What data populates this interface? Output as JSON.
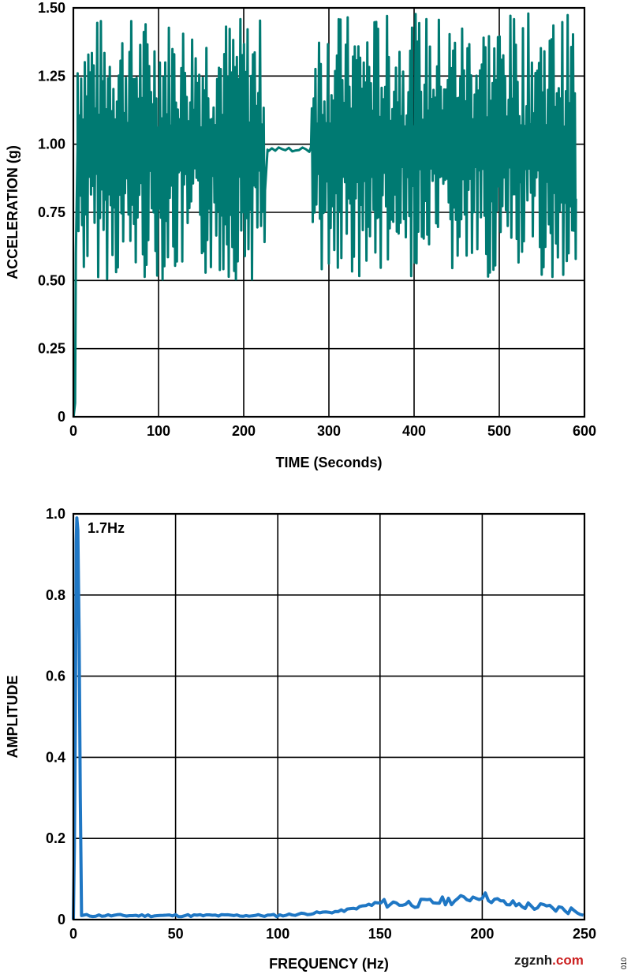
{
  "chart_data": [
    {
      "type": "line",
      "title": "",
      "xlabel": "TIME (Seconds)",
      "ylabel": "ACCELERATION (g)",
      "xlim": [
        0,
        600
      ],
      "ylim": [
        0,
        1.5
      ],
      "x_ticks": [
        "0",
        "100",
        "200",
        "300",
        "400",
        "500",
        "600"
      ],
      "y_ticks": [
        "0",
        "0.25",
        "0.50",
        "0.75",
        "1.00",
        "1.25",
        "1.50"
      ],
      "grid": true,
      "series_color": "#007a72",
      "segments": [
        {
          "x_start": 0,
          "x_end": 5,
          "behavior": "rise from 0 to ~1.0 g"
        },
        {
          "x_start": 5,
          "x_end": 225,
          "behavior": "oscillation",
          "min": 0.5,
          "max": 1.47
        },
        {
          "x_start": 225,
          "x_end": 280,
          "behavior": "near-steady",
          "min": 0.97,
          "max": 0.99
        },
        {
          "x_start": 280,
          "x_end": 590,
          "behavior": "oscillation",
          "min": 0.5,
          "max": 1.48
        }
      ]
    },
    {
      "type": "line",
      "title": "",
      "xlabel": "FREQUENCY (Hz)",
      "ylabel": "AMPLITUDE",
      "xlim": [
        0,
        250
      ],
      "ylim": [
        0,
        1.0
      ],
      "x_ticks": [
        "0",
        "50",
        "100",
        "150",
        "200",
        "250"
      ],
      "y_ticks": [
        "0",
        "0.2",
        "0.4",
        "0.6",
        "0.8",
        "1.0"
      ],
      "grid": true,
      "series_color": "#1f77c4",
      "points": [
        {
          "x": 0,
          "y": 0.0
        },
        {
          "x": 1.7,
          "y": 0.99
        },
        {
          "x": 4,
          "y": 0.01
        },
        {
          "x": 50,
          "y": 0.01
        },
        {
          "x": 100,
          "y": 0.01
        },
        {
          "x": 130,
          "y": 0.02
        },
        {
          "x": 150,
          "y": 0.04
        },
        {
          "x": 170,
          "y": 0.04
        },
        {
          "x": 190,
          "y": 0.05
        },
        {
          "x": 200,
          "y": 0.06
        },
        {
          "x": 210,
          "y": 0.04
        },
        {
          "x": 230,
          "y": 0.03
        },
        {
          "x": 250,
          "y": 0.02
        }
      ],
      "annotations": [
        {
          "text": "1.7Hz",
          "x": 1.7,
          "y": 0.99
        }
      ]
    }
  ],
  "watermark": {
    "text": "zgznh.com",
    "part1": "zgznh",
    "part2": ".com",
    "color1": "#1a1a1a",
    "color2": "#cc2222"
  },
  "figure_code": "010"
}
